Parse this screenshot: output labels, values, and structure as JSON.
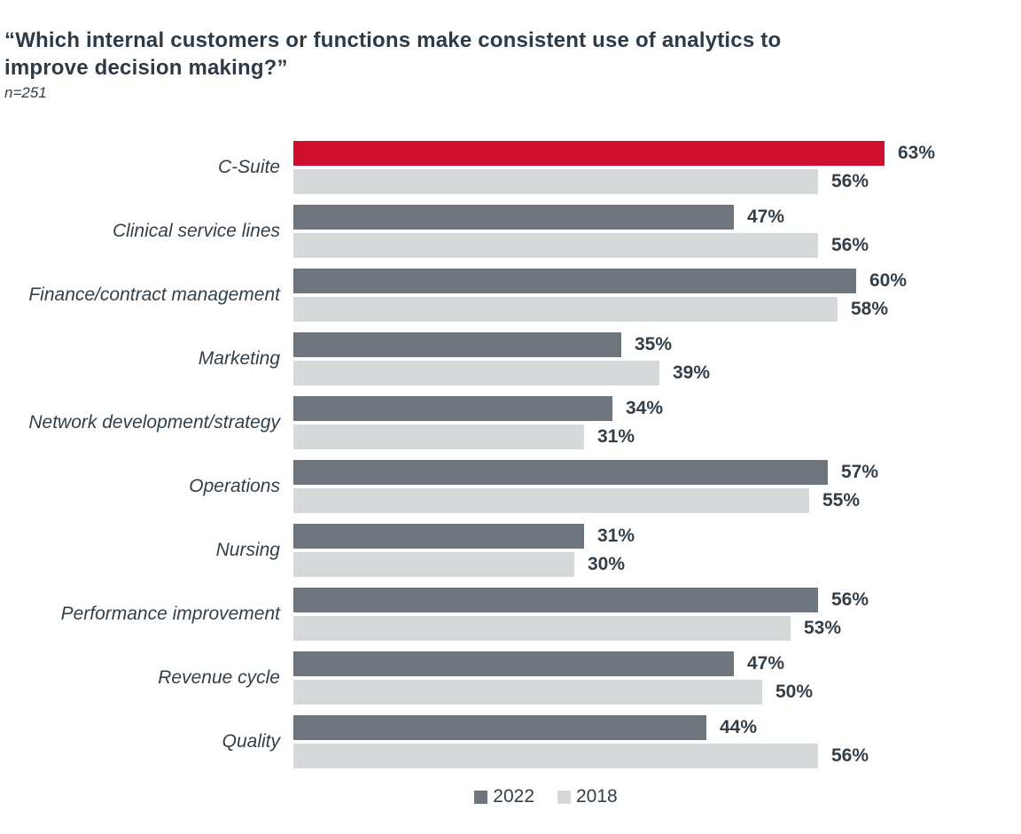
{
  "header": {
    "title": "“Which internal customers or functions make consistent use of analytics to improve decision making?”",
    "sample_size": "n=251"
  },
  "chart_data": {
    "type": "bar",
    "orientation": "horizontal",
    "title": "“Which internal customers or functions make consistent use of analytics to improve decision making?”",
    "subtitle": "n=251",
    "value_suffix": "%",
    "xlim": [
      0,
      100
    ],
    "grid": false,
    "legend_position": "bottom",
    "highlight_color": "#CE0E2D",
    "text_color": "#333F48",
    "categories": [
      "C-Suite",
      "Clinical service lines",
      "Finance/contract management",
      "Marketing",
      "Network development/strategy",
      "Operations",
      "Nursing",
      "Performance improvement",
      "Revenue cycle",
      "Quality"
    ],
    "series": [
      {
        "name": "2022",
        "color": "#6E757D",
        "highlight_index": 0,
        "values": [
          63,
          47,
          60,
          35,
          34,
          57,
          31,
          56,
          47,
          44
        ]
      },
      {
        "name": "2018",
        "color": "#D6D9D9",
        "values": [
          56,
          56,
          58,
          39,
          31,
          55,
          30,
          53,
          50,
          56
        ]
      }
    ]
  }
}
